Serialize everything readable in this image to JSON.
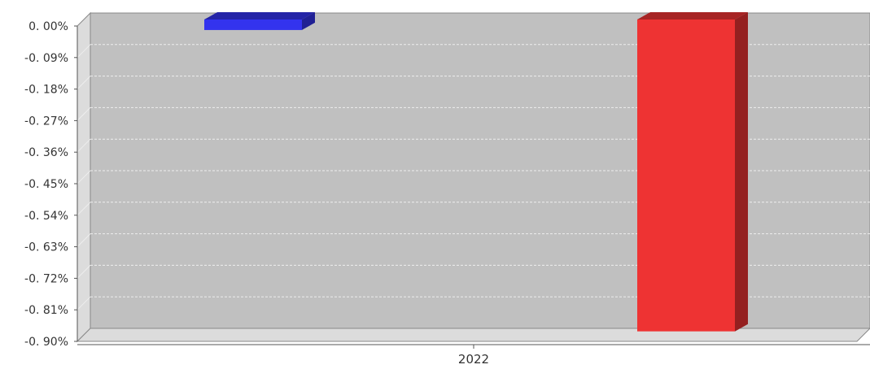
{
  "chart_data": {
    "type": "bar",
    "categories": [
      "2022"
    ],
    "series": [
      {
        "values": [
          -0.03
        ],
        "color": "#3333ee"
      },
      {
        "values": [
          -0.89
        ],
        "color": "#ee3333"
      }
    ],
    "title": "",
    "xlabel": "",
    "ylabel": "",
    "ylim": [
      -0.9,
      0.0
    ],
    "yticks": [
      0.0,
      -0.09,
      -0.18,
      -0.27,
      -0.36,
      -0.45,
      -0.54,
      -0.63,
      -0.72,
      -0.81,
      -0.9
    ],
    "ytick_labels": [
      "0. 00%",
      "-0. 09%",
      "-0. 18%",
      "-0. 27%",
      "-0. 36%",
      "-0. 45%",
      "-0. 54%",
      "-0. 63%",
      "-0. 72%",
      "-0. 81%",
      "-0. 90%"
    ],
    "xtick_labels": [
      "2022"
    ],
    "grid": true,
    "style": "3d",
    "colors": {
      "plot_back": "#c0c0c0",
      "left_wall": "#dcdcdc",
      "floor": "#dcdcdc",
      "gridline": "#eeeeee",
      "axis": "#555555"
    }
  }
}
